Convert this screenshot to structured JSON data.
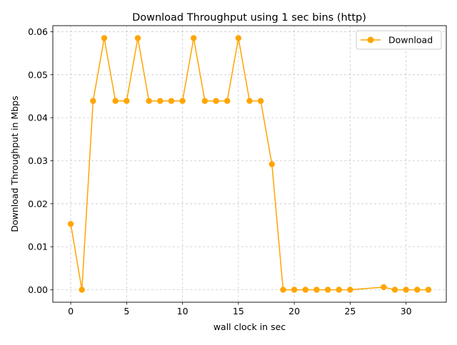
{
  "chart_data": {
    "type": "line",
    "title": "Download Throughput using 1 sec bins (http)",
    "xlabel": "wall clock in sec",
    "ylabel": "Download Throughput in Mbps",
    "xlim": [
      -1.6,
      33.6
    ],
    "ylim": [
      -0.0029,
      0.0614
    ],
    "xticks": [
      0,
      5,
      10,
      15,
      20,
      25,
      30
    ],
    "xtick_labels": [
      "0",
      "5",
      "10",
      "15",
      "20",
      "25",
      "30"
    ],
    "yticks": [
      0.0,
      0.01,
      0.02,
      0.03,
      0.04,
      0.05,
      0.06
    ],
    "ytick_labels": [
      "0.00",
      "0.01",
      "0.02",
      "0.03",
      "0.04",
      "0.05",
      "0.06"
    ],
    "grid": true,
    "legend_position": "upper right",
    "series": [
      {
        "name": "Download",
        "color": "#ffa500",
        "marker": "circle",
        "points": [
          [
            0,
            0.0153
          ],
          [
            1,
            0.0
          ],
          [
            2,
            0.0439
          ],
          [
            3,
            0.0585
          ],
          [
            4,
            0.0439
          ],
          [
            5,
            0.0439
          ],
          [
            6,
            0.0585
          ],
          [
            7,
            0.0439
          ],
          [
            8,
            0.0439
          ],
          [
            9,
            0.0439
          ],
          [
            10,
            0.0439
          ],
          [
            11,
            0.0585
          ],
          [
            12,
            0.0439
          ],
          [
            13,
            0.0439
          ],
          [
            14,
            0.0439
          ],
          [
            15,
            0.0585
          ],
          [
            16,
            0.0439
          ],
          [
            17,
            0.0439
          ],
          [
            18,
            0.0292
          ],
          [
            19,
            0.0
          ],
          [
            20,
            0.0
          ],
          [
            21,
            0.0
          ],
          [
            22,
            0.0
          ],
          [
            23,
            0.0
          ],
          [
            24,
            0.0
          ],
          [
            25,
            0.0
          ],
          [
            28,
            0.0006
          ],
          [
            29,
            0.0
          ],
          [
            30,
            0.0
          ],
          [
            31,
            0.0
          ],
          [
            32,
            0.0
          ]
        ]
      }
    ]
  }
}
